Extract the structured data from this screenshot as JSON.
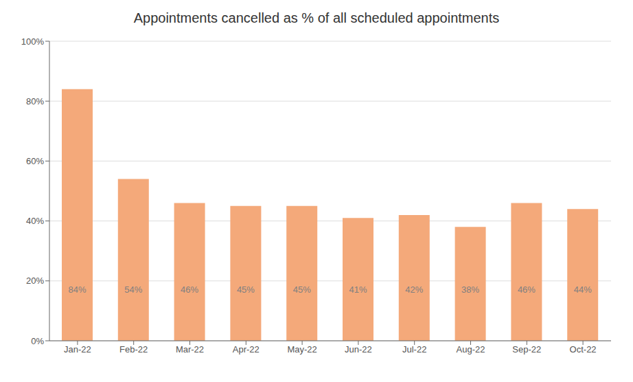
{
  "chart_data": {
    "type": "bar",
    "title": "Appointments cancelled as % of all scheduled appointments",
    "categories": [
      "Jan-22",
      "Feb-22",
      "Mar-22",
      "Apr-22",
      "May-22",
      "Jun-22",
      "Jul-22",
      "Aug-22",
      "Sep-22",
      "Oct-22"
    ],
    "values": [
      84,
      54,
      46,
      45,
      45,
      41,
      42,
      38,
      46,
      44
    ],
    "value_labels": [
      "84%",
      "54%",
      "46%",
      "45%",
      "45%",
      "41%",
      "42%",
      "38%",
      "46%",
      "44%"
    ],
    "data_labels": true,
    "color": "#F4A97A",
    "ylim": [
      0,
      100
    ],
    "yticks": [
      {
        "value": 0,
        "label": "0%"
      },
      {
        "value": 20,
        "label": "20%"
      },
      {
        "value": 40,
        "label": "40%"
      },
      {
        "value": 60,
        "label": "60%"
      },
      {
        "value": 80,
        "label": "80%"
      },
      {
        "value": 100,
        "label": "100%"
      }
    ],
    "grid": true
  }
}
